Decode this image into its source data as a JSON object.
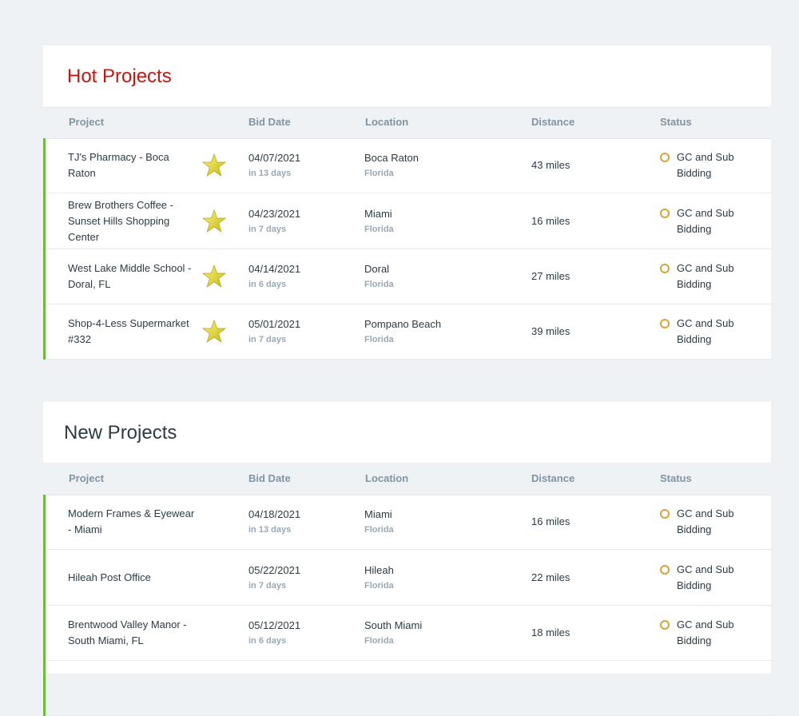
{
  "columns": {
    "project": "Project",
    "bid_date": "Bid Date",
    "location": "Location",
    "distance": "Distance",
    "status": "Status"
  },
  "hot": {
    "title": "Hot Projects",
    "rows": [
      {
        "name": "TJ's Pharmacy - Boca Raton",
        "date": "04/07/2021",
        "relative": "in 13 days",
        "city": "Boca Raton",
        "state": "Florida",
        "distance": "43 miles",
        "status": "GC and Sub Bidding"
      },
      {
        "name": "Brew Brothers Coffee - Sunset Hills Shopping Center",
        "date": "04/23/2021",
        "relative": "in 7 days",
        "city": "Miami",
        "state": "Florida",
        "distance": "16 miles",
        "status": "GC and Sub Bidding"
      },
      {
        "name": "West Lake Middle School - Doral, FL",
        "date": "04/14/2021",
        "relative": "in 6 days",
        "city": "Doral",
        "state": "Florida",
        "distance": "27 miles",
        "status": "GC and Sub Bidding"
      },
      {
        "name": "Shop-4-Less Supermarket #332",
        "date": "05/01/2021",
        "relative": "in 7 days",
        "city": "Pompano Beach",
        "state": "Florida",
        "distance": "39 miles",
        "status": "GC and Sub Bidding"
      }
    ]
  },
  "new": {
    "title": "New Projects",
    "rows": [
      {
        "name": "Modern Frames & Eyewear - Miami",
        "date": "04/18/2021",
        "relative": "in 13 days",
        "city": "Miami",
        "state": "Florida",
        "distance": "16 miles",
        "status": "GC and Sub Bidding"
      },
      {
        "name": "Hileah Post Office",
        "date": "05/22/2021",
        "relative": "in 7 days",
        "city": "Hileah",
        "state": "Florida",
        "distance": "22 miles",
        "status": "GC and Sub Bidding"
      },
      {
        "name": "Brentwood Valley Manor - South Miami, FL",
        "date": "05/12/2021",
        "relative": "in 6 days",
        "city": "South Miami",
        "state": "Florida",
        "distance": "18 miles",
        "status": "GC and Sub Bidding"
      }
    ]
  },
  "icons": {
    "favorite": "star-icon",
    "status": "status-circle-icon"
  },
  "colors": {
    "hot_title": "#c9150f",
    "row_accent": "#6bbd3a",
    "status_dot": "#d9a33a",
    "star": "#e8d82a"
  }
}
